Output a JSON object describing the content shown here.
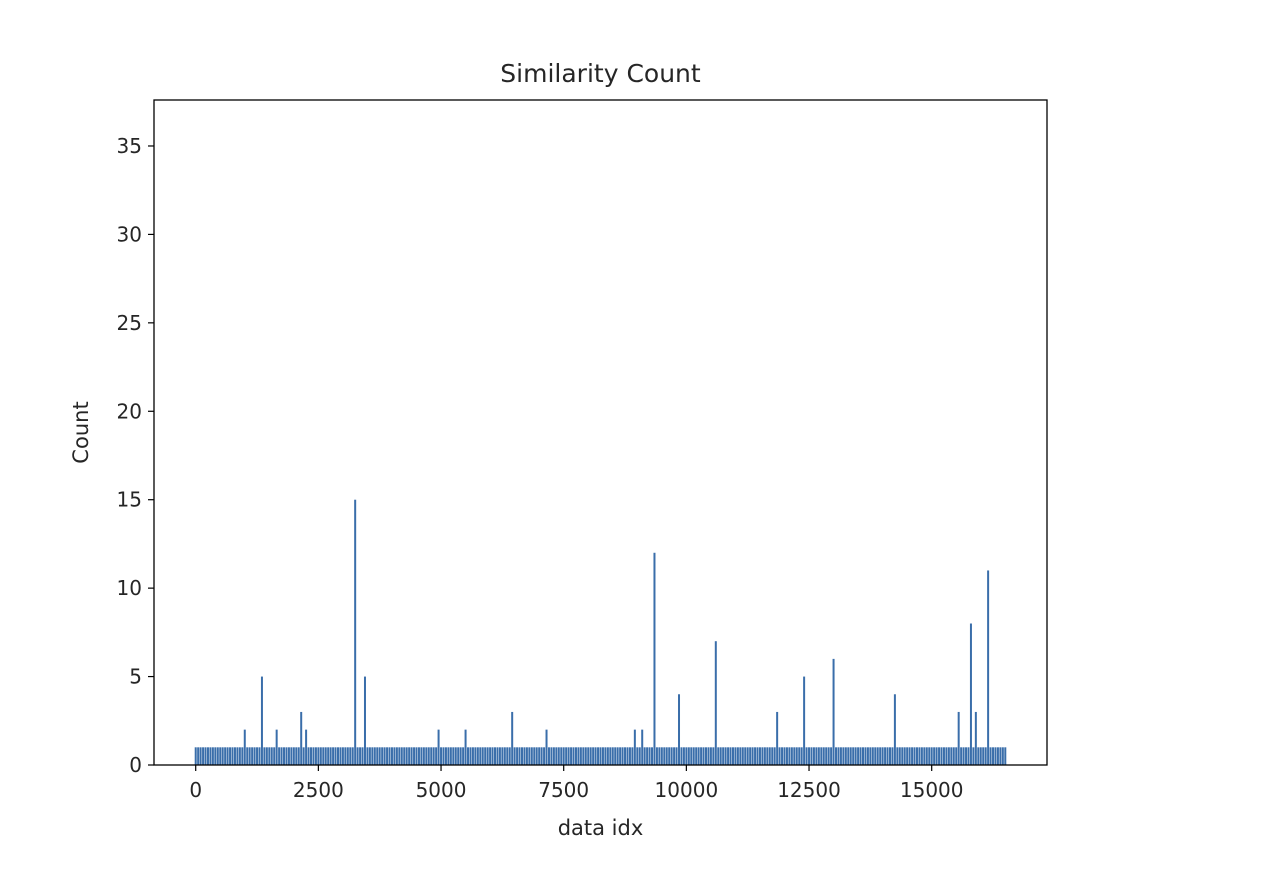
{
  "chart_data": {
    "type": "bar",
    "title": "Similarity Count",
    "xlabel": "data idx",
    "ylabel": "Count",
    "xlim": [
      -850,
      17350
    ],
    "ylim": [
      0,
      37.6
    ],
    "xticks": [
      0,
      2500,
      5000,
      7500,
      10000,
      12500,
      15000
    ],
    "yticks": [
      0,
      5,
      10,
      15,
      20,
      25,
      30,
      35
    ],
    "bar_color": "#3a6eaa",
    "baseline": {
      "x_start": 0,
      "x_end": 16500,
      "step": 50,
      "value": 1
    },
    "peaks": [
      {
        "x": 1000,
        "y": 2
      },
      {
        "x": 1350,
        "y": 5
      },
      {
        "x": 1650,
        "y": 2
      },
      {
        "x": 2150,
        "y": 3
      },
      {
        "x": 2250,
        "y": 2
      },
      {
        "x": 3250,
        "y": 15
      },
      {
        "x": 3450,
        "y": 5
      },
      {
        "x": 4950,
        "y": 2
      },
      {
        "x": 5500,
        "y": 2
      },
      {
        "x": 6450,
        "y": 3
      },
      {
        "x": 7150,
        "y": 2
      },
      {
        "x": 8950,
        "y": 2
      },
      {
        "x": 9100,
        "y": 2
      },
      {
        "x": 9350,
        "y": 12
      },
      {
        "x": 9850,
        "y": 4
      },
      {
        "x": 10600,
        "y": 7
      },
      {
        "x": 11850,
        "y": 3
      },
      {
        "x": 12400,
        "y": 5
      },
      {
        "x": 13000,
        "y": 6
      },
      {
        "x": 14250,
        "y": 4
      },
      {
        "x": 15550,
        "y": 3
      },
      {
        "x": 15800,
        "y": 8
      },
      {
        "x": 15900,
        "y": 3
      },
      {
        "x": 16150,
        "y": 11
      }
    ]
  }
}
